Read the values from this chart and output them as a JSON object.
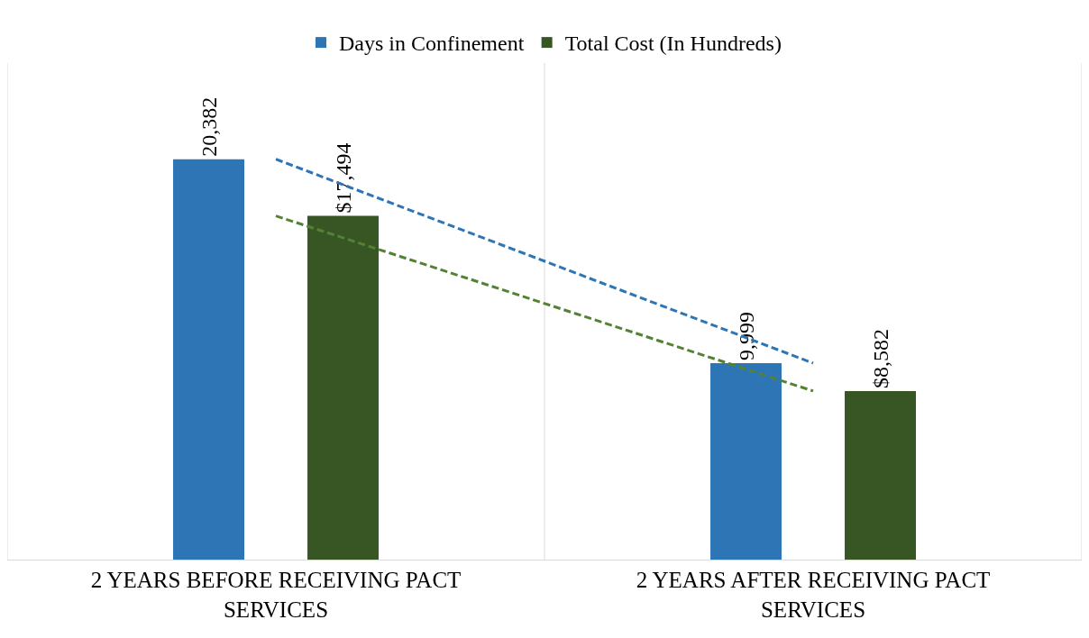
{
  "chart_data": {
    "type": "bar",
    "categories": [
      "2 YEARS BEFORE RECEIVING PACT SERVICES",
      "2 YEARS AFTER RECEIVING PACT SERVICES"
    ],
    "series": [
      {
        "name": "Days in Confinement",
        "color": "#2e75b6",
        "values": [
          20382,
          9999
        ],
        "value_labels": [
          "20,382",
          "9,999"
        ]
      },
      {
        "name": "Total Cost (In Hundreds)",
        "color": "#375623",
        "values": [
          17494,
          8582
        ],
        "value_labels": [
          "$17,494",
          "$8,582"
        ]
      },
      {
        "type": "line",
        "color": "#2e75b6",
        "values": [
          20382,
          9999
        ],
        "line_style": "dashed"
      },
      {
        "type": "line",
        "color": "#548235",
        "values": [
          17494,
          8582
        ],
        "line_style": "dashed"
      }
    ],
    "grid": "x",
    "legend": "top",
    "tick_labels": "x"
  }
}
